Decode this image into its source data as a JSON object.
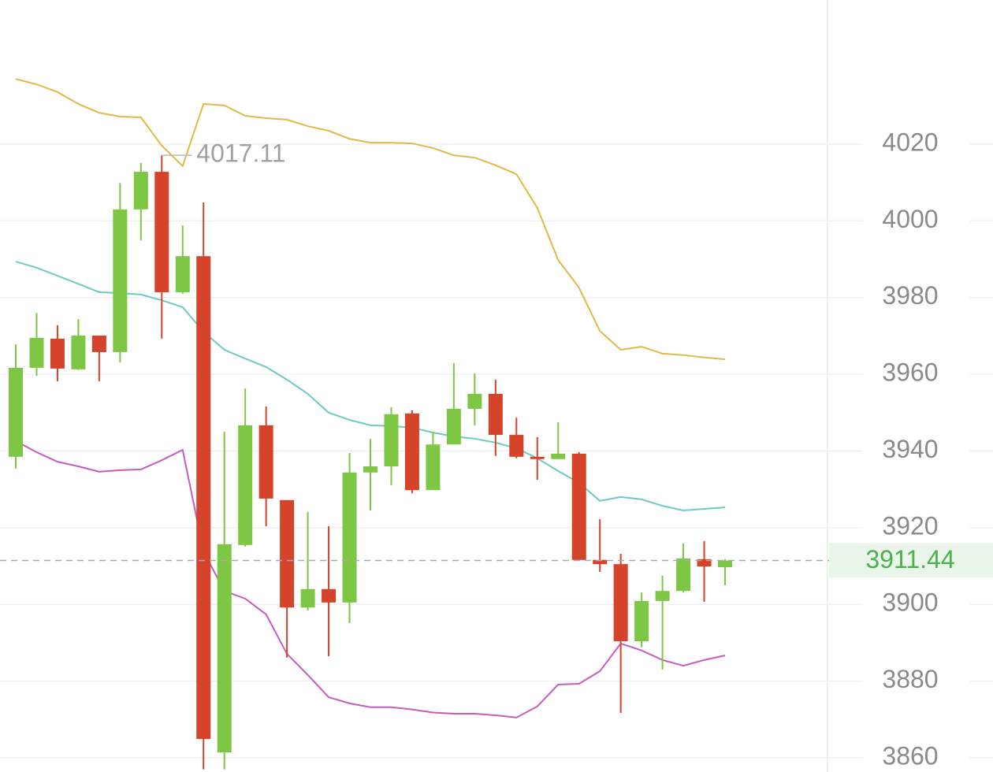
{
  "chart_data": {
    "type": "candlestick",
    "up_color": "#7dc744",
    "down_color": "#d4432a",
    "open": [
      3938.5,
      3961.7,
      3969.3,
      3961.3,
      3970.1,
      3965.8,
      4003.0,
      4012.8,
      3981.4,
      3990.8,
      3861.4,
      3915.5,
      3946.7,
      3927.2,
      3899.2,
      3904.0,
      3900.5,
      3934.4,
      3936.0,
      3949.8,
      3929.8,
      3941.7,
      3951.0,
      3954.9,
      3944.2,
      3938.5,
      3937.9,
      3939.3,
      3911.6,
      3910.5,
      3890.4,
      3900.9,
      3903.5,
      3911.8,
      3909.7
    ],
    "high": [
      3967.8,
      3976.0,
      3972.8,
      3974.4,
      3970.1,
      4009.9,
      4015.1,
      4017.11,
      3998.8,
      4004.8,
      3945.0,
      3956.3,
      3951.6,
      3927.2,
      3924.1,
      3920.4,
      3939.5,
      3943.2,
      3951.4,
      3950.6,
      3945.0,
      3962.9,
      3960.2,
      3958.6,
      3948.7,
      3943.6,
      3947.5,
      3939.7,
      3922.2,
      3913.2,
      3903.1,
      3907.5,
      3915.9,
      3916.5,
      3911.8
    ],
    "low": [
      3935.4,
      3959.6,
      3958.2,
      3961.1,
      3958.2,
      3963.1,
      3994.9,
      3969.3,
      3981.0,
      3857.0,
      3857.0,
      3915.1,
      3920.4,
      3886.1,
      3898.4,
      3886.5,
      3895.1,
      3924.5,
      3931.1,
      3929.0,
      3929.8,
      3941.7,
      3946.7,
      3938.7,
      3938.1,
      3932.5,
      3937.9,
      3911.6,
      3908.5,
      3871.7,
      3888.8,
      3883.0,
      3903.1,
      3900.7,
      3905.0
    ],
    "close": [
      3961.7,
      3969.5,
      3961.5,
      3970.1,
      3965.8,
      4003.0,
      4012.8,
      3981.4,
      3990.8,
      3864.9,
      3915.7,
      3946.7,
      3927.6,
      3899.2,
      3904.0,
      3900.5,
      3934.4,
      3936.0,
      3949.6,
      3929.8,
      3941.7,
      3951.0,
      3954.9,
      3944.2,
      3938.5,
      3937.9,
      3939.3,
      3911.6,
      3910.5,
      3890.4,
      3900.9,
      3903.5,
      3912.0,
      3909.9,
      3911.44
    ],
    "series": [
      {
        "color": "#e2b947",
        "values": [
          4037.0,
          4035.6,
          4033.6,
          4030.5,
          4028.2,
          4027.2,
          4027.0,
          4019.6,
          4014.3,
          4030.5,
          4030.1,
          4027.4,
          4026.8,
          4026.4,
          4024.7,
          4023.5,
          4021.4,
          4020.4,
          4020.4,
          4020.2,
          4019.0,
          4017.1,
          4016.5,
          4014.5,
          4012.2,
          4003.4,
          3989.8,
          3982.6,
          3971.3,
          3966.4,
          3967.2,
          3965.4,
          3965.0,
          3964.4,
          3963.9
        ]
      },
      {
        "color": "#6ccbc0",
        "values": [
          3989.4,
          3987.8,
          3985.7,
          3983.6,
          3981.4,
          3981.2,
          3980.8,
          3979.3,
          3977.5,
          3971.1,
          3966.4,
          3964.1,
          3961.9,
          3958.6,
          3954.9,
          3950.0,
          3948.1,
          3946.7,
          3946.5,
          3946.1,
          3944.8,
          3943.8,
          3943.2,
          3942.2,
          3940.7,
          3938.1,
          3934.8,
          3931.7,
          3927.0,
          3928.0,
          3927.4,
          3925.7,
          3924.5,
          3924.9,
          3925.3
        ]
      },
      {
        "color": "#c65cbf",
        "values": [
          3942.6,
          3939.7,
          3937.2,
          3936.0,
          3934.6,
          3935.0,
          3935.2,
          3937.6,
          3940.3,
          3913.8,
          3903.5,
          3901.5,
          3897.4,
          3887.1,
          3881.6,
          3875.8,
          3874.2,
          3873.2,
          3873.2,
          3872.6,
          3871.8,
          3871.5,
          3871.5,
          3871.1,
          3870.5,
          3873.4,
          3879.1,
          3879.3,
          3882.6,
          3889.8,
          3888.0,
          3885.5,
          3884.0,
          3885.5,
          3886.7
        ]
      }
    ],
    "ylim": [
      3856.3,
      4057.6
    ],
    "yticks": [
      3860,
      3880,
      3900,
      3920,
      3940,
      3960,
      3980,
      4000,
      4020
    ],
    "grid": true
  }
}
